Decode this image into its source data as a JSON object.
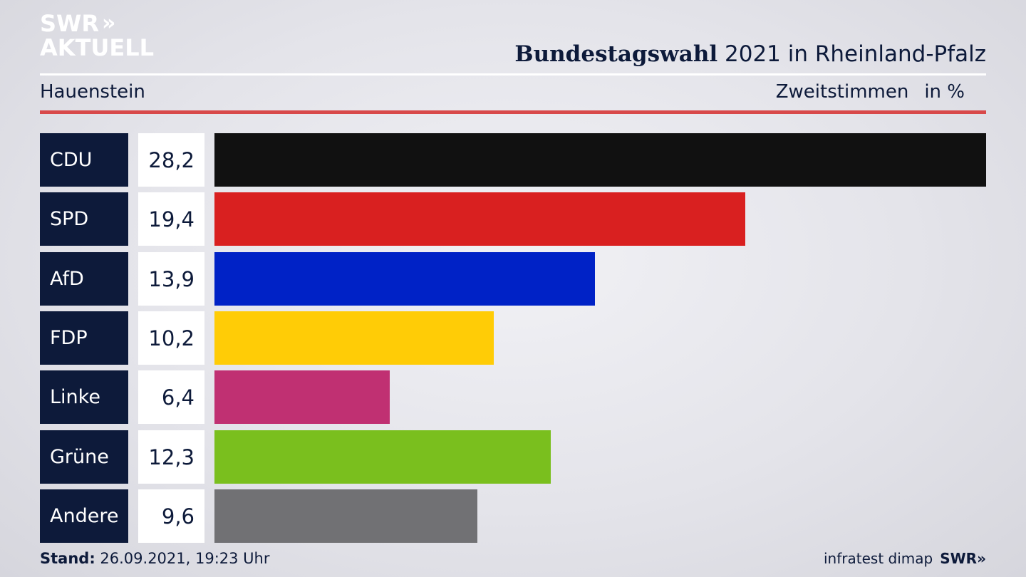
{
  "brand": {
    "logo_line1": "SWR",
    "logo_chevrons": "»",
    "logo_line2": "AKTUELL"
  },
  "header": {
    "title_bold": "Bundestagswahl",
    "title_rest": " 2021 in Rheinland-Pfalz",
    "subtitle": "Hauenstein",
    "measure": "Zweitstimmen",
    "unit": "in %"
  },
  "colors": {
    "accent_red": "#d8494a",
    "navy": "#0d1a3a"
  },
  "chart_data": {
    "type": "bar",
    "orientation": "horizontal",
    "categories": [
      "CDU",
      "SPD",
      "AfD",
      "FDP",
      "Linke",
      "Grüne",
      "Andere"
    ],
    "values": [
      28.2,
      19.4,
      13.9,
      10.2,
      6.4,
      12.3,
      9.6
    ],
    "value_labels": [
      "28,2",
      "19,4",
      "13,9",
      "10,2",
      "6,4",
      "12,3",
      "9,6"
    ],
    "colors": [
      "#111111",
      "#d92020",
      "#0022c6",
      "#ffcc06",
      "#c03072",
      "#7abf1e",
      "#717174"
    ],
    "title": "Bundestagswahl 2021 in Rheinland-Pfalz",
    "subtitle": "Hauenstein",
    "xlabel": "",
    "ylabel": "",
    "grid": false
  },
  "footer": {
    "stand_label": "Stand:",
    "stand_value": " 26.09.2021, 19:23 Uhr",
    "source": "infratest dimap",
    "brand": "SWR»"
  }
}
